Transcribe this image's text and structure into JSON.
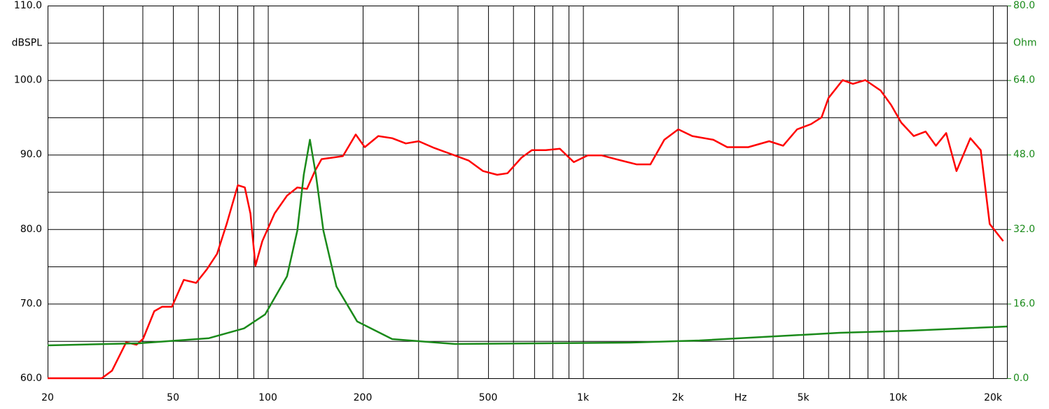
{
  "chart_data": {
    "type": "line",
    "x_label": "Hz",
    "y_unit": "dBSPL",
    "y2_unit": "Ohm",
    "log_x": true,
    "grid": true,
    "xlim": [
      20,
      22150
    ],
    "xticks": [
      20,
      50,
      100,
      200,
      500,
      {
        "value": 1000,
        "label": "1k"
      },
      {
        "value": 2000,
        "label": "2k"
      },
      {
        "value": 5000,
        "label": "5k"
      },
      {
        "value": 10000,
        "label": "10k"
      },
      {
        "value": 20000,
        "label": "20k"
      }
    ],
    "xminor": [
      30,
      40,
      60,
      70,
      80,
      90,
      300,
      400,
      600,
      700,
      800,
      900,
      3000,
      4000,
      6000,
      7000,
      8000,
      9000
    ],
    "ylim": [
      60,
      110
    ],
    "yticks": [
      {
        "value": 60,
        "label": "60.0"
      },
      {
        "value": 70,
        "label": "70.0"
      },
      {
        "value": 80,
        "label": "80.0"
      },
      {
        "value": 90,
        "label": "90.0"
      },
      {
        "value": 100,
        "label": "100.0"
      },
      {
        "value": 110,
        "label": "110.0"
      }
    ],
    "yminor": [
      65,
      75,
      85,
      95,
      105
    ],
    "y2lim": [
      0,
      80
    ],
    "y2ticks": [
      {
        "value": 0,
        "label": "0.0"
      },
      {
        "value": 16,
        "label": "16.0"
      },
      {
        "value": 32,
        "label": "32.0"
      },
      {
        "value": 48,
        "label": "48.0"
      },
      {
        "value": 64,
        "label": "64.0"
      },
      {
        "value": 80,
        "label": "80.0"
      }
    ],
    "y2color": "#1a8a1a",
    "series": [
      {
        "color": "#ff0000",
        "x": [
          20,
          29.7,
          32,
          35.5,
          38.3,
          40.2,
          43.6,
          46.2,
          49.6,
          54.1,
          59.2,
          64,
          69,
          74,
          80.3,
          84.5,
          88,
          91.3,
          96,
          105,
          115,
          124,
          133,
          141,
          148,
          160,
          173,
          190,
          203,
          224,
          248,
          274,
          301,
          337,
          392,
          434,
          482,
          534,
          576,
          638,
          688,
          762,
          844,
          935,
          1035,
          1147,
          1270,
          1478,
          1636,
          1812,
          2006,
          2222,
          2590,
          2868,
          3344,
          3897,
          4315,
          4779,
          5292,
          5715,
          6010,
          6664,
          7187,
          7873,
          8800,
          9490,
          10230,
          11210,
          12220,
          13180,
          14210,
          15320,
          16950,
          18280,
          19520,
          21550
        ],
        "values": [
          60,
          60,
          61,
          64.8,
          64.5,
          65.3,
          69,
          69.6,
          69.6,
          73.2,
          72.8,
          74.6,
          76.7,
          80.7,
          85.9,
          85.6,
          82.1,
          75.1,
          78.4,
          82.1,
          84.5,
          85.6,
          85.4,
          87.8,
          89.4,
          89.6,
          89.8,
          92.7,
          91,
          92.5,
          92.2,
          91.5,
          91.8,
          90.9,
          89.9,
          89.2,
          87.8,
          87.3,
          87.5,
          89.6,
          90.6,
          90.6,
          90.8,
          89,
          89.9,
          89.9,
          89.4,
          88.7,
          88.7,
          92,
          93.4,
          92.5,
          92,
          91,
          91,
          91.8,
          91.2,
          93.4,
          94.1,
          95,
          97.6,
          100,
          99.5,
          100,
          98.6,
          96.7,
          94.3,
          92.5,
          93.1,
          91.2,
          92.9,
          87.8,
          92.2,
          90.6,
          80.7,
          78.4
        ]
      },
      {
        "color": "#1a8a1a",
        "axis": "y2",
        "x": [
          20,
          39,
          65,
          84,
          98,
          115,
          124,
          130,
          136,
          142,
          150,
          165,
          192,
          248,
          392,
          1415,
          2340,
          6520,
          10900,
          22150
        ],
        "values": [
          7.05,
          7.5,
          8.6,
          10.7,
          13.7,
          21.9,
          31.7,
          43.7,
          51.2,
          43.7,
          31.7,
          19.7,
          12.2,
          8.4,
          7.35,
          7.65,
          8.1,
          9.75,
          10.2,
          11.1
        ]
      }
    ]
  }
}
